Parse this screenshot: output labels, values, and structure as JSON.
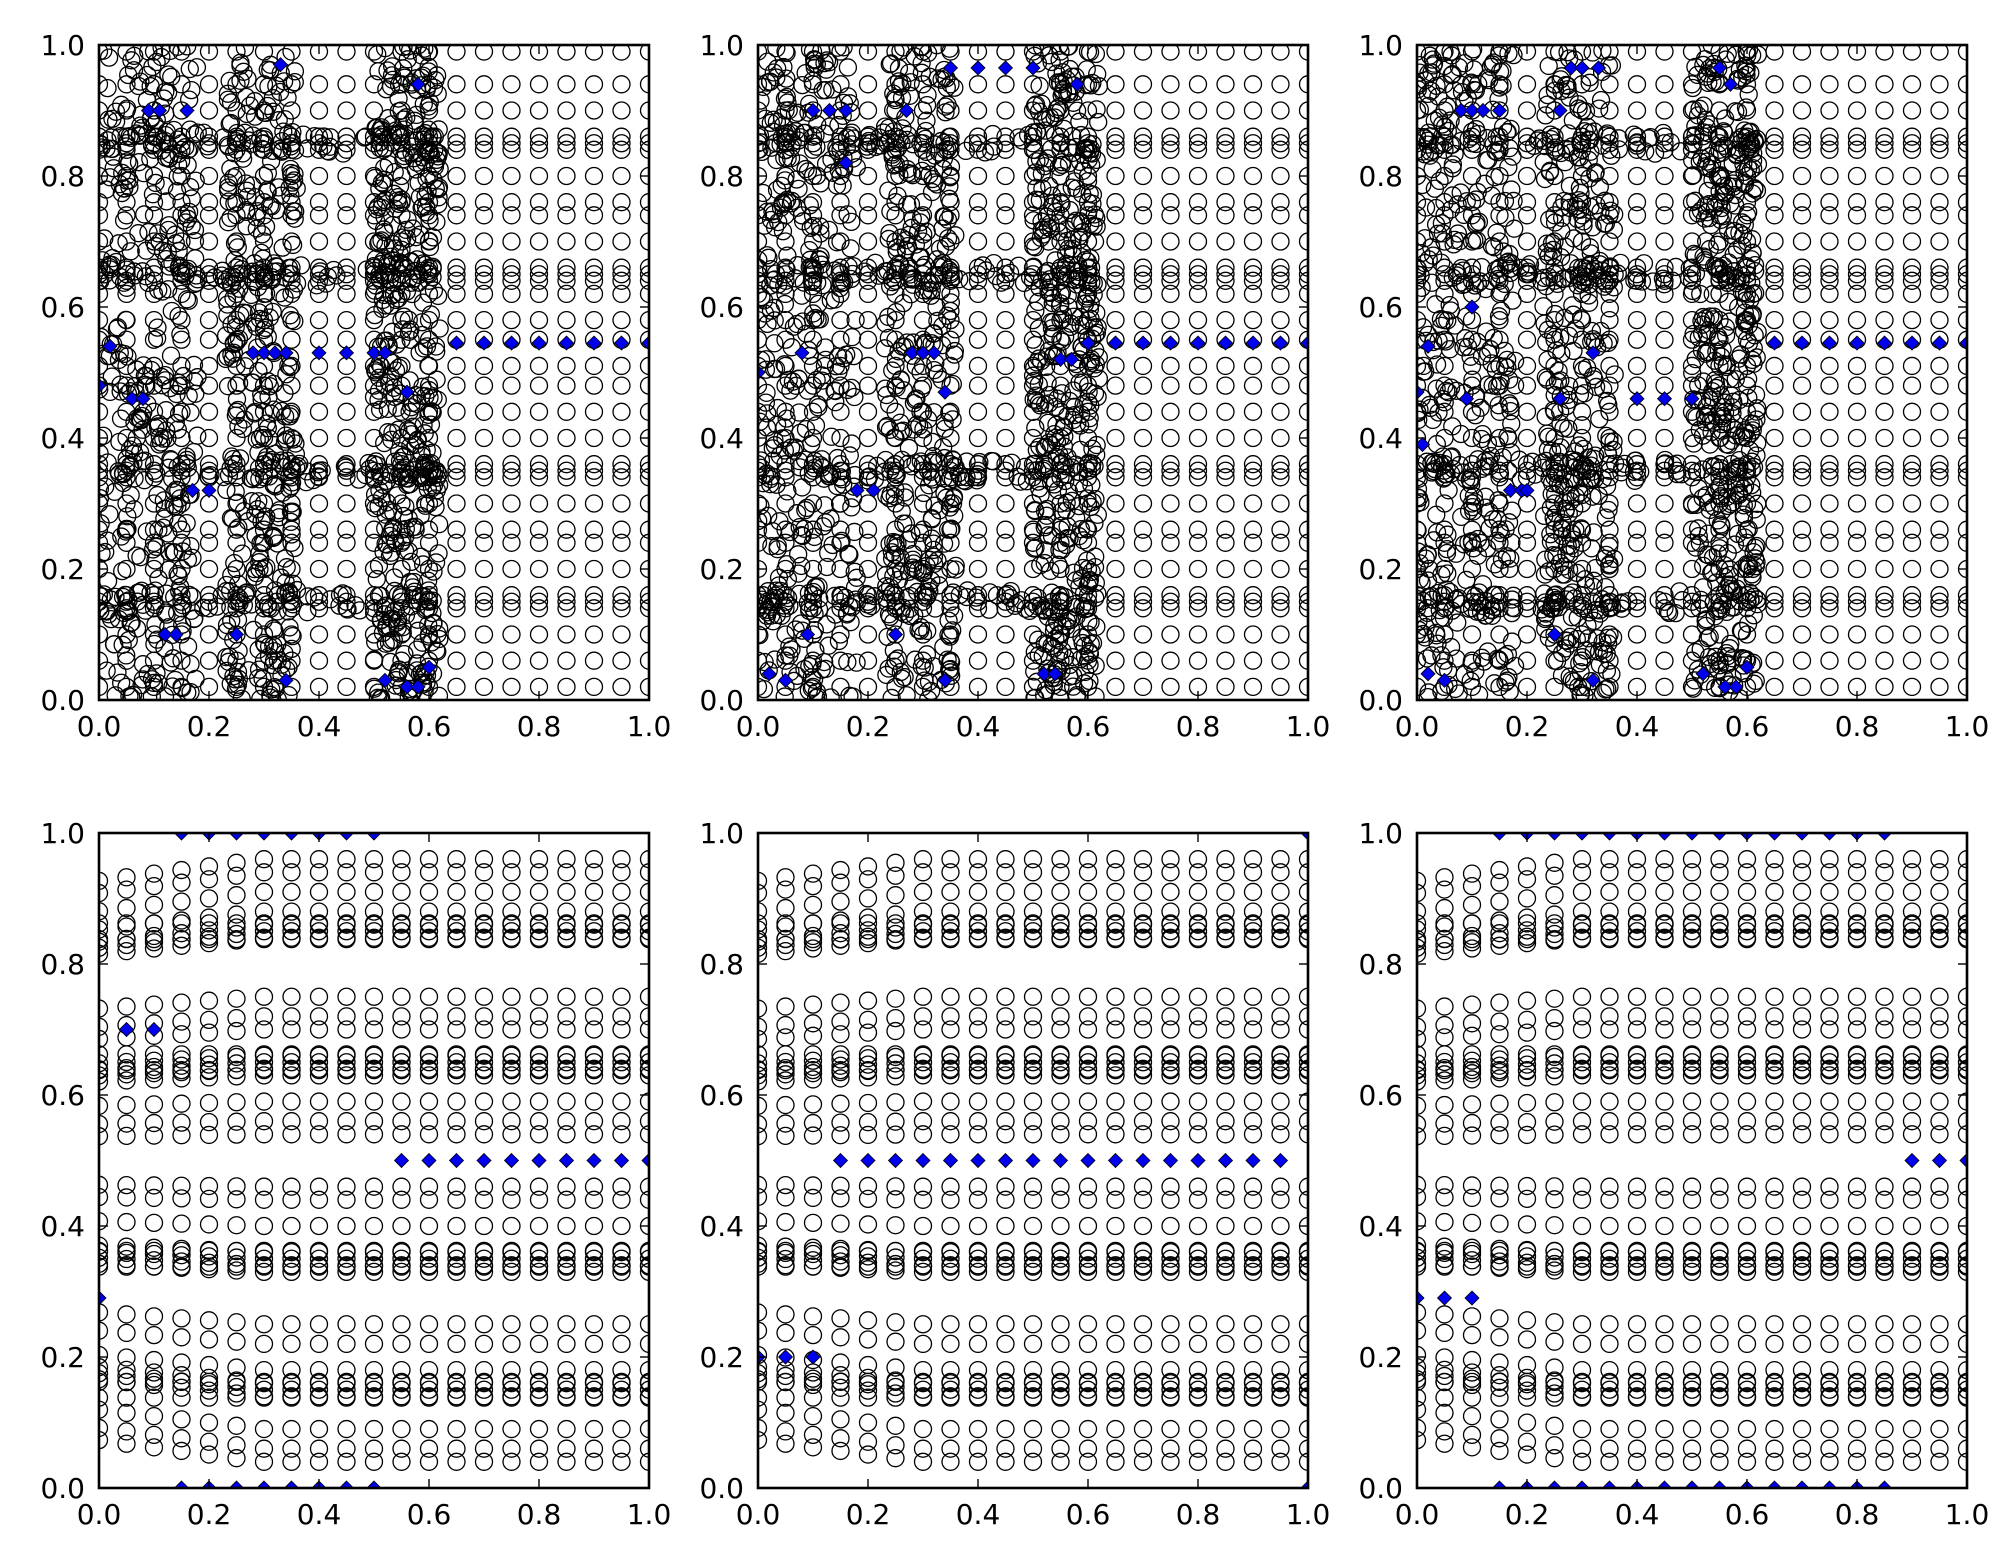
{
  "chart_data": [
    {
      "type": "scatter",
      "xlim": [
        0.0,
        1.0
      ],
      "ylim": [
        0.0,
        1.0
      ],
      "xticks": [
        "0.0",
        "0.2",
        "0.4",
        "0.6",
        "0.8",
        "1.0"
      ],
      "yticks": [
        "0.0",
        "0.2",
        "0.4",
        "0.6",
        "0.8",
        "1.0"
      ],
      "grid": false,
      "background_pattern": "dense",
      "series": [
        {
          "marker": "circle-open",
          "color": "#000000",
          "values": "background-grid"
        },
        {
          "marker": "diamond",
          "color": "#0000ee",
          "points": [
            [
              0.33,
              0.97
            ],
            [
              0.09,
              0.9
            ],
            [
              0.11,
              0.9
            ],
            [
              0.16,
              0.9
            ],
            [
              0.58,
              0.94
            ],
            [
              0.02,
              0.54
            ],
            [
              0.28,
              0.53
            ],
            [
              0.3,
              0.53
            ],
            [
              0.32,
              0.53
            ],
            [
              0.34,
              0.53
            ],
            [
              0.4,
              0.53
            ],
            [
              0.45,
              0.53
            ],
            [
              0.5,
              0.53
            ],
            [
              0.52,
              0.53
            ],
            [
              0.65,
              0.545
            ],
            [
              0.7,
              0.545
            ],
            [
              0.75,
              0.545
            ],
            [
              0.8,
              0.545
            ],
            [
              0.85,
              0.545
            ],
            [
              0.9,
              0.545
            ],
            [
              0.95,
              0.545
            ],
            [
              1.0,
              0.545
            ],
            [
              0.0,
              0.48
            ],
            [
              0.06,
              0.46
            ],
            [
              0.08,
              0.46
            ],
            [
              0.56,
              0.47
            ],
            [
              0.17,
              0.32
            ],
            [
              0.2,
              0.32
            ],
            [
              0.12,
              0.1
            ],
            [
              0.14,
              0.1
            ],
            [
              0.25,
              0.1
            ],
            [
              0.34,
              0.03
            ],
            [
              0.52,
              0.03
            ],
            [
              0.56,
              0.02
            ],
            [
              0.58,
              0.02
            ],
            [
              0.6,
              0.05
            ]
          ]
        }
      ]
    },
    {
      "type": "scatter",
      "xlim": [
        0.0,
        1.0
      ],
      "ylim": [
        0.0,
        1.0
      ],
      "xticks": [
        "0.0",
        "0.2",
        "0.4",
        "0.6",
        "0.8",
        "1.0"
      ],
      "yticks": [
        "0.0",
        "0.2",
        "0.4",
        "0.6",
        "0.8",
        "1.0"
      ],
      "grid": false,
      "background_pattern": "dense",
      "series": [
        {
          "marker": "circle-open",
          "color": "#000000",
          "values": "background-grid"
        },
        {
          "marker": "diamond",
          "color": "#0000ee",
          "points": [
            [
              0.35,
              0.965
            ],
            [
              0.4,
              0.965
            ],
            [
              0.45,
              0.965
            ],
            [
              0.5,
              0.965
            ],
            [
              0.58,
              0.94
            ],
            [
              0.1,
              0.9
            ],
            [
              0.13,
              0.9
            ],
            [
              0.16,
              0.9
            ],
            [
              0.27,
              0.9
            ],
            [
              0.16,
              0.82
            ],
            [
              0.08,
              0.53
            ],
            [
              0.28,
              0.53
            ],
            [
              0.3,
              0.53
            ],
            [
              0.32,
              0.53
            ],
            [
              0.34,
              0.47
            ],
            [
              0.55,
              0.52
            ],
            [
              0.57,
              0.52
            ],
            [
              0.6,
              0.545
            ],
            [
              0.65,
              0.545
            ],
            [
              0.7,
              0.545
            ],
            [
              0.75,
              0.545
            ],
            [
              0.8,
              0.545
            ],
            [
              0.85,
              0.545
            ],
            [
              0.9,
              0.545
            ],
            [
              0.95,
              0.545
            ],
            [
              1.0,
              0.545
            ],
            [
              0.0,
              0.5
            ],
            [
              0.18,
              0.32
            ],
            [
              0.21,
              0.32
            ],
            [
              0.02,
              0.04
            ],
            [
              0.05,
              0.03
            ],
            [
              0.09,
              0.1
            ],
            [
              0.25,
              0.1
            ],
            [
              0.34,
              0.03
            ],
            [
              0.52,
              0.04
            ],
            [
              0.54,
              0.04
            ]
          ]
        }
      ]
    },
    {
      "type": "scatter",
      "xlim": [
        0.0,
        1.0
      ],
      "ylim": [
        0.0,
        1.0
      ],
      "xticks": [
        "0.0",
        "0.2",
        "0.4",
        "0.6",
        "0.8",
        "1.0"
      ],
      "yticks": [
        "0.0",
        "0.2",
        "0.4",
        "0.6",
        "0.8",
        "1.0"
      ],
      "grid": false,
      "background_pattern": "dense",
      "series": [
        {
          "marker": "circle-open",
          "color": "#000000",
          "values": "background-grid"
        },
        {
          "marker": "diamond",
          "color": "#0000ee",
          "points": [
            [
              0.28,
              0.965
            ],
            [
              0.3,
              0.965
            ],
            [
              0.33,
              0.965
            ],
            [
              0.55,
              0.965
            ],
            [
              0.08,
              0.9
            ],
            [
              0.1,
              0.9
            ],
            [
              0.12,
              0.9
            ],
            [
              0.15,
              0.9
            ],
            [
              0.26,
              0.9
            ],
            [
              0.57,
              0.94
            ],
            [
              0.02,
              0.54
            ],
            [
              0.1,
              0.6
            ],
            [
              0.32,
              0.53
            ],
            [
              0.09,
              0.46
            ],
            [
              0.0,
              0.47
            ],
            [
              0.26,
              0.46
            ],
            [
              0.4,
              0.46
            ],
            [
              0.45,
              0.46
            ],
            [
              0.5,
              0.46
            ],
            [
              0.65,
              0.545
            ],
            [
              0.7,
              0.545
            ],
            [
              0.75,
              0.545
            ],
            [
              0.8,
              0.545
            ],
            [
              0.85,
              0.545
            ],
            [
              0.9,
              0.545
            ],
            [
              0.95,
              0.545
            ],
            [
              1.0,
              0.545
            ],
            [
              0.01,
              0.39
            ],
            [
              0.17,
              0.32
            ],
            [
              0.19,
              0.32
            ],
            [
              0.2,
              0.32
            ],
            [
              0.02,
              0.04
            ],
            [
              0.05,
              0.03
            ],
            [
              0.25,
              0.1
            ],
            [
              0.32,
              0.03
            ],
            [
              0.52,
              0.04
            ],
            [
              0.56,
              0.02
            ],
            [
              0.58,
              0.02
            ],
            [
              0.6,
              0.05
            ]
          ]
        }
      ]
    },
    {
      "type": "scatter",
      "xlim": [
        0.0,
        1.0
      ],
      "ylim": [
        0.0,
        1.0
      ],
      "xticks": [
        "0.0",
        "0.2",
        "0.4",
        "0.6",
        "0.8",
        "1.0"
      ],
      "yticks": [
        "0.0",
        "0.2",
        "0.4",
        "0.6",
        "0.8",
        "1.0"
      ],
      "grid": false,
      "background_pattern": "rows",
      "series": [
        {
          "marker": "circle-open",
          "color": "#000000",
          "values": "background-grid"
        },
        {
          "marker": "diamond",
          "color": "#0000ee",
          "points": [
            [
              0.15,
              1.0
            ],
            [
              0.2,
              1.0
            ],
            [
              0.25,
              1.0
            ],
            [
              0.3,
              1.0
            ],
            [
              0.35,
              1.0
            ],
            [
              0.4,
              1.0
            ],
            [
              0.45,
              1.0
            ],
            [
              0.5,
              1.0
            ],
            [
              0.05,
              0.7
            ],
            [
              0.1,
              0.7
            ],
            [
              0.55,
              0.5
            ],
            [
              0.6,
              0.5
            ],
            [
              0.65,
              0.5
            ],
            [
              0.7,
              0.5
            ],
            [
              0.75,
              0.5
            ],
            [
              0.8,
              0.5
            ],
            [
              0.85,
              0.5
            ],
            [
              0.9,
              0.5
            ],
            [
              0.95,
              0.5
            ],
            [
              1.0,
              0.5
            ],
            [
              0.0,
              0.29
            ],
            [
              0.15,
              0.0
            ],
            [
              0.2,
              0.0
            ],
            [
              0.25,
              0.0
            ],
            [
              0.3,
              0.0
            ],
            [
              0.35,
              0.0
            ],
            [
              0.4,
              0.0
            ],
            [
              0.45,
              0.0
            ],
            [
              0.5,
              0.0
            ]
          ]
        }
      ]
    },
    {
      "type": "scatter",
      "xlim": [
        0.0,
        1.0
      ],
      "ylim": [
        0.0,
        1.0
      ],
      "xticks": [
        "0.0",
        "0.2",
        "0.4",
        "0.6",
        "0.8",
        "1.0"
      ],
      "yticks": [
        "0.0",
        "0.2",
        "0.4",
        "0.6",
        "0.8",
        "1.0"
      ],
      "grid": false,
      "background_pattern": "rows",
      "series": [
        {
          "marker": "circle-open",
          "color": "#000000",
          "values": "background-grid"
        },
        {
          "marker": "diamond",
          "color": "#0000ee",
          "points": [
            [
              1.0,
              1.0
            ],
            [
              0.15,
              0.5
            ],
            [
              0.2,
              0.5
            ],
            [
              0.25,
              0.5
            ],
            [
              0.3,
              0.5
            ],
            [
              0.35,
              0.5
            ],
            [
              0.4,
              0.5
            ],
            [
              0.45,
              0.5
            ],
            [
              0.5,
              0.5
            ],
            [
              0.55,
              0.5
            ],
            [
              0.6,
              0.5
            ],
            [
              0.65,
              0.5
            ],
            [
              0.7,
              0.5
            ],
            [
              0.75,
              0.5
            ],
            [
              0.8,
              0.5
            ],
            [
              0.85,
              0.5
            ],
            [
              0.9,
              0.5
            ],
            [
              0.95,
              0.5
            ],
            [
              0.0,
              0.2
            ],
            [
              0.05,
              0.2
            ],
            [
              0.1,
              0.2
            ],
            [
              1.0,
              0.0
            ]
          ]
        }
      ]
    },
    {
      "type": "scatter",
      "xlim": [
        0.0,
        1.0
      ],
      "ylim": [
        0.0,
        1.0
      ],
      "xticks": [
        "0.0",
        "0.2",
        "0.4",
        "0.6",
        "0.8",
        "1.0"
      ],
      "yticks": [
        "0.0",
        "0.2",
        "0.4",
        "0.6",
        "0.8",
        "1.0"
      ],
      "grid": false,
      "background_pattern": "rows",
      "series": [
        {
          "marker": "circle-open",
          "color": "#000000",
          "values": "background-grid"
        },
        {
          "marker": "diamond",
          "color": "#0000ee",
          "points": [
            [
              0.15,
              1.0
            ],
            [
              0.2,
              1.0
            ],
            [
              0.25,
              1.0
            ],
            [
              0.3,
              1.0
            ],
            [
              0.35,
              1.0
            ],
            [
              0.4,
              1.0
            ],
            [
              0.45,
              1.0
            ],
            [
              0.5,
              1.0
            ],
            [
              0.55,
              1.0
            ],
            [
              0.6,
              1.0
            ],
            [
              0.65,
              1.0
            ],
            [
              0.7,
              1.0
            ],
            [
              0.75,
              1.0
            ],
            [
              0.8,
              1.0
            ],
            [
              0.85,
              1.0
            ],
            [
              0.9,
              0.5
            ],
            [
              0.95,
              0.5
            ],
            [
              1.0,
              0.5
            ],
            [
              0.0,
              0.29
            ],
            [
              0.05,
              0.29
            ],
            [
              0.1,
              0.29
            ],
            [
              0.15,
              0.0
            ],
            [
              0.2,
              0.0
            ],
            [
              0.25,
              0.0
            ],
            [
              0.3,
              0.0
            ],
            [
              0.35,
              0.0
            ],
            [
              0.4,
              0.0
            ],
            [
              0.45,
              0.0
            ],
            [
              0.5,
              0.0
            ],
            [
              0.55,
              0.0
            ],
            [
              0.6,
              0.0
            ],
            [
              0.65,
              0.0
            ],
            [
              0.7,
              0.0
            ],
            [
              0.75,
              0.0
            ],
            [
              0.8,
              0.0
            ],
            [
              0.85,
              0.0
            ]
          ]
        }
      ]
    }
  ]
}
